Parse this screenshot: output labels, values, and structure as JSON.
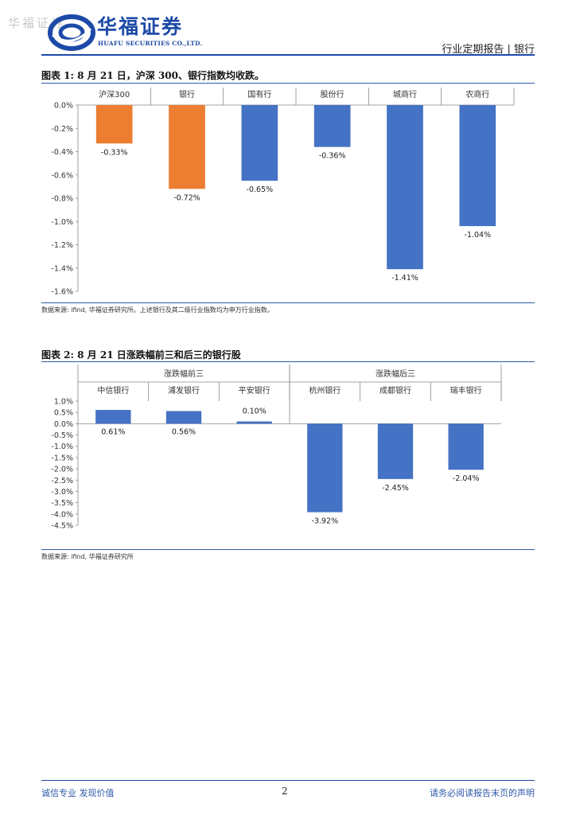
{
  "header": {
    "watermark": "华福证券",
    "logo_cn": "华福证券",
    "logo_en": "HUAFU SECURITIES CO.,LTD.",
    "report_type": "行业定期报告 | 银行"
  },
  "figure1": {
    "title": "图表 1:  8 月 21 日，沪深 300、银行指数均收跌。",
    "source": "数据来源:  ifind,  华福证券研究所。上述银行及其二级行业指数均为申万行业指数。"
  },
  "figure2": {
    "title": "图表 2:  8 月 21 日涨跌幅前三和后三的银行股",
    "source": "数据来源:  ifind,  华福证券研究所"
  },
  "footer": {
    "left": "诚信专业  发现价值",
    "page": "2",
    "right": "请务必阅读报告末页的声明"
  },
  "colors": {
    "orange": "#ED7D31",
    "blue": "#4472C4",
    "brand": "#1D4AA8"
  },
  "chart_data": [
    {
      "type": "bar",
      "title": "8 月 21 日，沪深 300、银行指数均收跌。",
      "categories": [
        "沪深300",
        "银行",
        "国有行",
        "股份行",
        "城商行",
        "农商行"
      ],
      "values": [
        -0.33,
        -0.72,
        -0.65,
        -0.36,
        -1.41,
        -1.04
      ],
      "value_labels": [
        "-0.33%",
        "-0.72%",
        "-0.65%",
        "-0.36%",
        "-1.41%",
        "-1.04%"
      ],
      "bar_colors": [
        "#ED7D31",
        "#ED7D31",
        "#4472C4",
        "#4472C4",
        "#4472C4",
        "#4472C4"
      ],
      "y_ticks": [
        "0.0%",
        "-0.2%",
        "-0.4%",
        "-0.6%",
        "-0.8%",
        "-1.0%",
        "-1.2%",
        "-1.4%",
        "-1.6%"
      ],
      "ylim": [
        -1.6,
        0.0
      ],
      "ylabel": "",
      "xlabel": ""
    },
    {
      "type": "bar",
      "title": "8 月 21 日涨跌幅前三和后三的银行股",
      "groups": [
        "涨跌幅前三",
        "涨跌幅后三"
      ],
      "categories": [
        "中信银行",
        "浦发银行",
        "平安银行",
        "杭州银行",
        "成都银行",
        "瑞丰银行"
      ],
      "values": [
        0.61,
        0.56,
        0.1,
        -3.92,
        -2.45,
        -2.04
      ],
      "value_labels": [
        "0.61%",
        "0.56%",
        "0.10%",
        "-3.92%",
        "-2.45%",
        "-2.04%"
      ],
      "bar_colors": [
        "#4472C4",
        "#4472C4",
        "#4472C4",
        "#4472C4",
        "#4472C4",
        "#4472C4"
      ],
      "y_ticks": [
        "1.0%",
        "0.5%",
        "0.0%",
        "-0.5%",
        "-1.0%",
        "-1.5%",
        "-2.0%",
        "-2.5%",
        "-3.0%",
        "-3.5%",
        "-4.0%",
        "-4.5%"
      ],
      "ylim": [
        -4.5,
        1.0
      ],
      "ylabel": "",
      "xlabel": ""
    }
  ]
}
